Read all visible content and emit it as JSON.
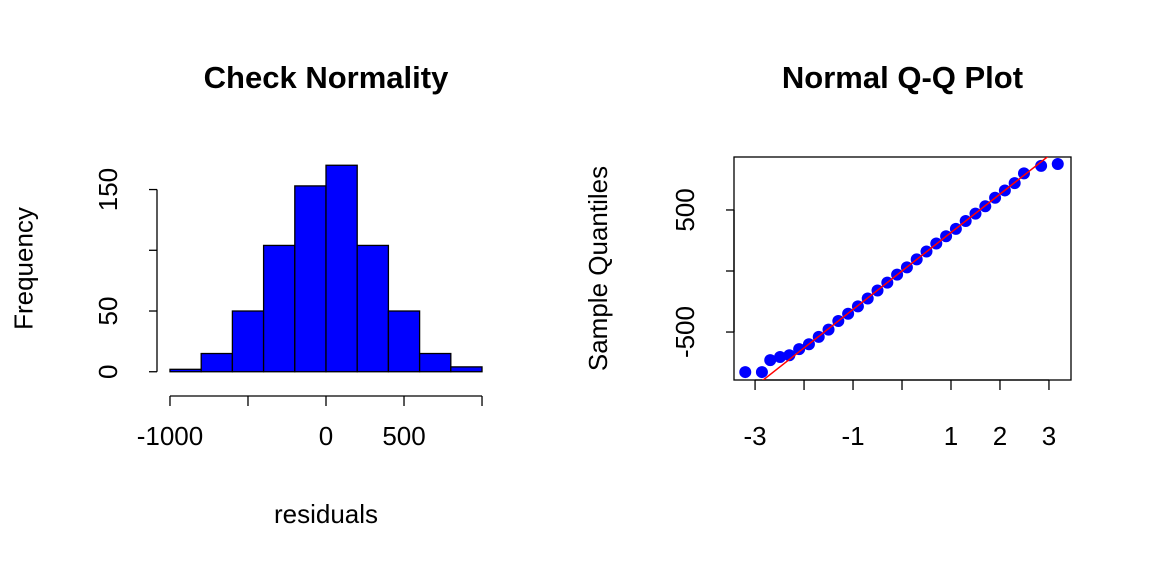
{
  "chart_data": [
    {
      "type": "histogram",
      "title": "Check Normality",
      "xlabel": "residuals",
      "ylabel": "Frequency",
      "bins": [
        -1000,
        -800,
        -600,
        -400,
        -200,
        0,
        200,
        400,
        600,
        800,
        1000
      ],
      "values": [
        2,
        15,
        50,
        104,
        153,
        170,
        104,
        50,
        15,
        4
      ],
      "color": "#0000ff",
      "xlim": [
        -1080,
        1080
      ],
      "ylim": [
        -6.8,
        176.8
      ],
      "xticks": [
        -1000,
        0,
        500
      ],
      "minor_xticks": [
        -500,
        1000
      ],
      "yticks": [
        0,
        50,
        150
      ],
      "minor_yticks": [
        100
      ]
    },
    {
      "type": "scatter",
      "title": "Normal Q-Q Plot",
      "ylabel": "Sample Quantiles",
      "x": [
        -3.2,
        -2.86,
        -2.69,
        -2.49,
        -2.3,
        -2.1,
        -1.9,
        -1.7,
        -1.5,
        -1.3,
        -1.1,
        -0.9,
        -0.7,
        -0.5,
        -0.3,
        -0.1,
        0.1,
        0.3,
        0.5,
        0.7,
        0.9,
        1.1,
        1.3,
        1.5,
        1.7,
        1.9,
        2.1,
        2.3,
        2.49,
        2.84,
        3.18
      ],
      "values": [
        -828,
        -828,
        -730,
        -705,
        -690,
        -640,
        -600,
        -540,
        -480,
        -410,
        -350,
        -290,
        -225,
        -160,
        -95,
        -30,
        30,
        95,
        160,
        225,
        285,
        345,
        410,
        470,
        530,
        600,
        660,
        720,
        800,
        861,
        877
      ],
      "color": "#0000ff",
      "reference_line": {
        "slope": 315,
        "intercept": 0,
        "color": "#ff0000"
      },
      "xlim": [
        -3.43,
        3.45
      ],
      "ylim": [
        -893,
        934
      ],
      "xticks": [
        -3,
        -1,
        1,
        2,
        3
      ],
      "minor_xticks": [
        -2,
        0
      ],
      "yticks": [
        -500,
        500
      ],
      "minor_yticks": [
        0
      ],
      "box": true
    }
  ]
}
